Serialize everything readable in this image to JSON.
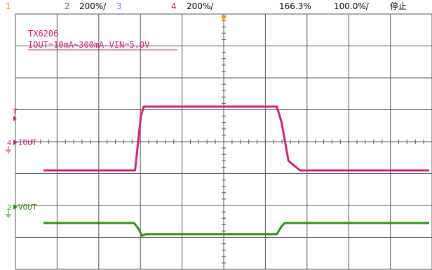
{
  "status_bar": {
    "ch1_number": "1",
    "ch2_number": "2",
    "ch2_scale": "200%/",
    "ch3_number": "3",
    "ch4_number": "4",
    "ch4_scale": "200%/",
    "timebase": "166.3%",
    "trigger_info": "100.0%/",
    "run_state": "停止"
  },
  "annotation": {
    "line1": "TX6206",
    "line2": "IOUT=10mA~300mA VIN=5.0V"
  },
  "channel_labels": {
    "ch4_marker": "4",
    "ch4_name": "IOUT",
    "ch2_marker": "2",
    "ch2_name": "VOUT",
    "trigger_marker": "T"
  },
  "colors": {
    "ch1": "#e8a000",
    "ch2": "#2f8f10",
    "ch3": "#6a82d8",
    "ch4": "#d0207a",
    "grid": "#555555",
    "background": "#ffffff",
    "trigger": "#e8a000"
  },
  "icons": {
    "ground": "ground-symbol-icon",
    "trigger_position": "trigger-arrow-icon"
  },
  "chart_data": {
    "type": "line",
    "grid": true,
    "series": [
      {
        "channel": "4",
        "name": "IOUT",
        "x": [
          0,
          4.75,
          5.05,
          5.2,
          12.1,
          12.35,
          12.7,
          13.3,
          20
        ],
        "y": [
          3.1,
          3.1,
          4.8,
          5.1,
          5.1,
          4.6,
          3.4,
          3.1,
          3.1
        ]
      },
      {
        "channel": "2",
        "name": "VOUT",
        "x": [
          0,
          4.7,
          4.95,
          5.1,
          5.3,
          12.1,
          12.35,
          12.5,
          20
        ],
        "y": [
          1.45,
          1.45,
          1.25,
          1.05,
          1.1,
          1.1,
          1.35,
          1.45,
          1.45
        ]
      }
    ]
  }
}
